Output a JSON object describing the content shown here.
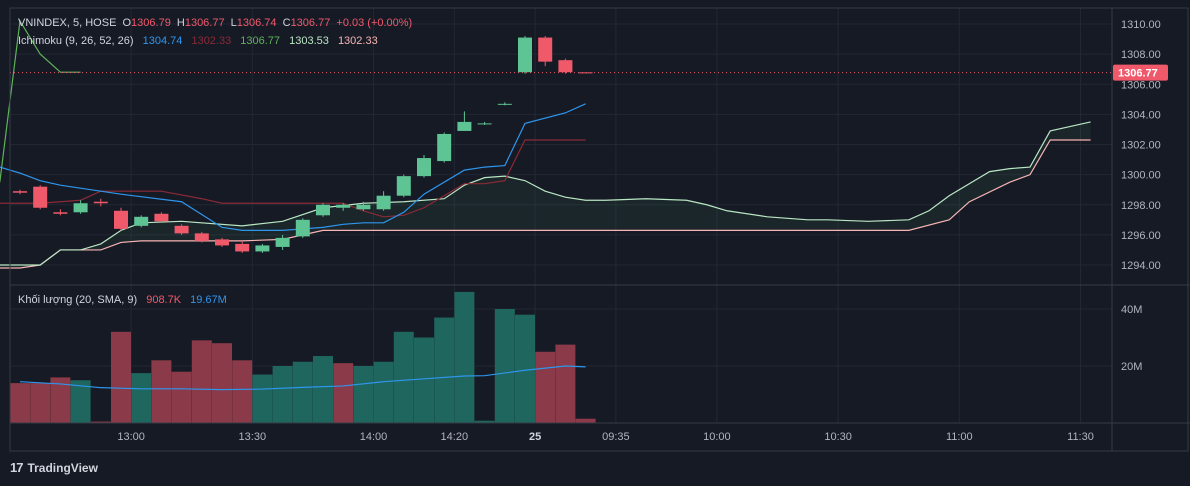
{
  "colors": {
    "background": "#161a25",
    "grid": "#232734",
    "border": "#363a45",
    "up": "#5ec494",
    "down": "#f0596a",
    "vol_up": "#1f665e",
    "vol_down": "#8a3a48",
    "tenkan": "#2f96ee",
    "kijun": "#8a2a36",
    "chikou": "#5fb35a",
    "span_a": "#b9e6c3",
    "span_b": "#f7b4b4",
    "cloud": "rgba(60,130,80,0.12)",
    "sma": "#2f96ee",
    "text": "#d1d4dc",
    "axis_text": "#b2b5be",
    "price_tag": "#f0596a"
  },
  "header": {
    "symbol": "VNINDEX, 5, HOSE",
    "o_label": "O",
    "o_value": "1306.79",
    "h_label": "H",
    "h_value": "1306.77",
    "l_label": "L",
    "l_value": "1306.74",
    "c_label": "C",
    "c_value": "1306.77",
    "change": "+0.03 (+0.00%)"
  },
  "ichimoku_legend": {
    "name": "Ichimoku (9, 26, 52, 26)",
    "v1": "1304.74",
    "v2": "1302.33",
    "v3": "1306.77",
    "v4": "1303.53",
    "v5": "1302.33"
  },
  "volume_legend": {
    "name": "Khối lượng (20, SMA, 9)",
    "v1": "908.7K",
    "v2": "19.67M"
  },
  "brand": {
    "logo": "17",
    "name": "TradingView"
  },
  "chart_data": {
    "type": "candlestick",
    "price_axis": {
      "ylim": [
        1292.6,
        1311.0
      ],
      "ticks": [
        "1294.00",
        "1296.00",
        "1298.00",
        "1300.00",
        "1302.00",
        "1304.00",
        "1306.00",
        "1308.00",
        "1310.00"
      ],
      "last_price": "1306.77"
    },
    "volume_axis": {
      "ylim": [
        0,
        48
      ],
      "ticks": [
        {
          "v": 20,
          "label": "20M"
        },
        {
          "v": 40,
          "label": "40M"
        }
      ]
    },
    "time_axis": {
      "ticks": [
        {
          "i": 5.5,
          "label": "13:00",
          "bold": false
        },
        {
          "i": 11.5,
          "label": "13:30",
          "bold": false
        },
        {
          "i": 17.5,
          "label": "14:00",
          "bold": false
        },
        {
          "i": 21.5,
          "label": "14:20",
          "bold": false
        },
        {
          "i": 25.5,
          "label": "25",
          "bold": true
        },
        {
          "i": 29.5,
          "label": "09:35",
          "bold": false
        },
        {
          "i": 34.5,
          "label": "10:00",
          "bold": false
        },
        {
          "i": 40.5,
          "label": "10:30",
          "bold": false
        },
        {
          "i": 46.5,
          "label": "11:00",
          "bold": false
        },
        {
          "i": 52.5,
          "label": "11:30",
          "bold": false
        }
      ]
    },
    "candles": [
      {
        "o": 1298.9,
        "h": 1299.0,
        "l": 1298.7,
        "c": 1298.8
      },
      {
        "o": 1299.2,
        "h": 1299.3,
        "l": 1297.7,
        "c": 1297.8
      },
      {
        "o": 1297.5,
        "h": 1297.7,
        "l": 1297.3,
        "c": 1297.4
      },
      {
        "o": 1297.5,
        "h": 1298.3,
        "l": 1297.4,
        "c": 1298.1
      },
      {
        "o": 1298.2,
        "h": 1298.4,
        "l": 1297.9,
        "c": 1298.1
      },
      {
        "o": 1297.6,
        "h": 1297.8,
        "l": 1296.3,
        "c": 1296.4
      },
      {
        "o": 1296.6,
        "h": 1297.3,
        "l": 1296.5,
        "c": 1297.2
      },
      {
        "o": 1297.4,
        "h": 1297.5,
        "l": 1296.8,
        "c": 1296.9
      },
      {
        "o": 1296.6,
        "h": 1296.7,
        "l": 1296.0,
        "c": 1296.1
      },
      {
        "o": 1296.1,
        "h": 1296.2,
        "l": 1295.5,
        "c": 1295.6
      },
      {
        "o": 1295.7,
        "h": 1295.8,
        "l": 1295.2,
        "c": 1295.3
      },
      {
        "o": 1295.4,
        "h": 1295.6,
        "l": 1294.8,
        "c": 1294.9
      },
      {
        "o": 1294.9,
        "h": 1295.4,
        "l": 1294.8,
        "c": 1295.3
      },
      {
        "o": 1295.2,
        "h": 1296.0,
        "l": 1295.0,
        "c": 1295.8
      },
      {
        "o": 1295.9,
        "h": 1297.1,
        "l": 1295.8,
        "c": 1297.0
      },
      {
        "o": 1297.3,
        "h": 1298.1,
        "l": 1297.2,
        "c": 1298.0
      },
      {
        "o": 1297.8,
        "h": 1298.1,
        "l": 1297.6,
        "c": 1298.0
      },
      {
        "o": 1297.7,
        "h": 1298.2,
        "l": 1297.6,
        "c": 1298.0
      },
      {
        "o": 1297.7,
        "h": 1298.9,
        "l": 1297.6,
        "c": 1298.6
      },
      {
        "o": 1298.6,
        "h": 1300.0,
        "l": 1298.5,
        "c": 1299.9
      },
      {
        "o": 1299.9,
        "h": 1301.3,
        "l": 1299.8,
        "c": 1301.1
      },
      {
        "o": 1300.9,
        "h": 1302.8,
        "l": 1300.8,
        "c": 1302.7
      },
      {
        "o": 1302.9,
        "h": 1304.2,
        "l": 1302.9,
        "c": 1303.5
      },
      {
        "o": 1303.4,
        "h": 1303.5,
        "l": 1303.3,
        "c": 1303.4
      },
      {
        "o": 1304.7,
        "h": 1304.8,
        "l": 1304.6,
        "c": 1304.7
      },
      {
        "o": 1306.8,
        "h": 1309.2,
        "l": 1306.7,
        "c": 1309.1
      },
      {
        "o": 1309.1,
        "h": 1309.2,
        "l": 1307.2,
        "c": 1307.5
      },
      {
        "o": 1307.6,
        "h": 1307.7,
        "l": 1306.7,
        "c": 1306.8
      },
      {
        "o": 1306.79,
        "h": 1306.77,
        "l": 1306.74,
        "c": 1306.77
      }
    ],
    "volumes": [
      {
        "v": 14.0,
        "up": false
      },
      {
        "v": 14.0,
        "up": false
      },
      {
        "v": 16.0,
        "up": false
      },
      {
        "v": 15.0,
        "up": true
      },
      {
        "v": 0.5,
        "up": false
      },
      {
        "v": 32.0,
        "up": false
      },
      {
        "v": 17.5,
        "up": true
      },
      {
        "v": 22.0,
        "up": false
      },
      {
        "v": 18.0,
        "up": false
      },
      {
        "v": 29.0,
        "up": false
      },
      {
        "v": 28.0,
        "up": false
      },
      {
        "v": 22.0,
        "up": false
      },
      {
        "v": 17.0,
        "up": true
      },
      {
        "v": 20.0,
        "up": true
      },
      {
        "v": 21.5,
        "up": true
      },
      {
        "v": 23.5,
        "up": true
      },
      {
        "v": 21.0,
        "up": false
      },
      {
        "v": 20.0,
        "up": true
      },
      {
        "v": 21.5,
        "up": true
      },
      {
        "v": 32.0,
        "up": true
      },
      {
        "v": 30.0,
        "up": true
      },
      {
        "v": 37.0,
        "up": true
      },
      {
        "v": 46.0,
        "up": true
      },
      {
        "v": 0.8,
        "up": true
      },
      {
        "v": 40.0,
        "up": true
      },
      {
        "v": 38.0,
        "up": true
      },
      {
        "v": 25.0,
        "up": false
      },
      {
        "v": 27.5,
        "up": false
      },
      {
        "v": 1.5,
        "up": false
      }
    ],
    "volume_sma": {
      "x": [
        0,
        2,
        4,
        6,
        8,
        10,
        12,
        14,
        16,
        18,
        20,
        22,
        23,
        25,
        27,
        28
      ],
      "y": [
        14.5,
        13.7,
        12.4,
        12.0,
        12.0,
        11.7,
        11.9,
        12.5,
        13.0,
        14.5,
        15.5,
        16.5,
        16.6,
        18.5,
        20.0,
        19.7
      ]
    },
    "tenkan": {
      "x": [
        -1,
        0,
        1,
        2,
        5,
        8,
        10,
        11,
        13,
        15,
        16,
        17,
        18,
        19,
        20,
        22,
        23,
        24,
        25,
        27,
        28
      ],
      "y": [
        1300.5,
        1300.1,
        1299.6,
        1299.3,
        1298.7,
        1298.2,
        1296.5,
        1296.3,
        1296.3,
        1296.5,
        1296.7,
        1296.8,
        1296.8,
        1297.5,
        1298.7,
        1300.3,
        1300.5,
        1300.6,
        1303.4,
        1304.1,
        1304.7
      ]
    },
    "kijun": {
      "x": [
        -1,
        1,
        3,
        4,
        7,
        9,
        10,
        16,
        17,
        18,
        19,
        20,
        21,
        22,
        23,
        24,
        25,
        28
      ],
      "y": [
        1298.1,
        1298.1,
        1298.3,
        1298.9,
        1298.9,
        1298.4,
        1298.1,
        1298.1,
        1297.6,
        1297.2,
        1297.3,
        1297.8,
        1298.6,
        1299.4,
        1299.4,
        1299.6,
        1302.3,
        1302.3
      ]
    },
    "chikou": {
      "x": [
        -1,
        0,
        1,
        2,
        3
      ],
      "y": [
        1299.5,
        1310.2,
        1308.0,
        1306.8,
        1306.8
      ]
    },
    "span_a": {
      "x": [
        -1,
        0,
        1,
        2,
        3,
        4,
        5,
        6,
        8,
        11,
        13,
        15,
        17,
        19,
        21,
        22,
        23,
        24,
        25,
        26,
        27,
        28,
        29,
        31,
        33,
        34,
        35,
        37,
        39,
        40,
        42,
        44,
        45,
        46,
        48,
        49,
        50,
        51,
        52,
        53
      ],
      "y": [
        1294.0,
        1294.0,
        1294.0,
        1295.0,
        1295.0,
        1295.4,
        1296.3,
        1296.8,
        1296.9,
        1296.6,
        1296.9,
        1297.8,
        1298.1,
        1298.2,
        1298.4,
        1299.3,
        1299.8,
        1299.9,
        1299.6,
        1298.9,
        1298.5,
        1298.3,
        1298.3,
        1298.4,
        1298.3,
        1298.0,
        1297.6,
        1297.2,
        1297.0,
        1297.0,
        1296.9,
        1297.0,
        1297.6,
        1298.6,
        1300.2,
        1300.4,
        1300.5,
        1302.9,
        1303.2,
        1303.5
      ]
    },
    "span_b": {
      "x": [
        -1,
        0,
        1,
        2,
        4,
        5,
        6,
        11,
        13,
        15,
        16,
        17,
        18,
        44,
        46,
        47,
        49,
        50,
        51,
        53
      ],
      "y": [
        1293.8,
        1293.8,
        1294.0,
        1295.0,
        1295.0,
        1295.5,
        1295.6,
        1295.6,
        1295.7,
        1296.3,
        1296.3,
        1296.3,
        1296.3,
        1296.3,
        1297.0,
        1298.2,
        1299.5,
        1300.0,
        1302.3,
        1302.3
      ]
    },
    "last_price_line": {
      "from": 0,
      "to": 54,
      "y": 1306.77
    }
  }
}
